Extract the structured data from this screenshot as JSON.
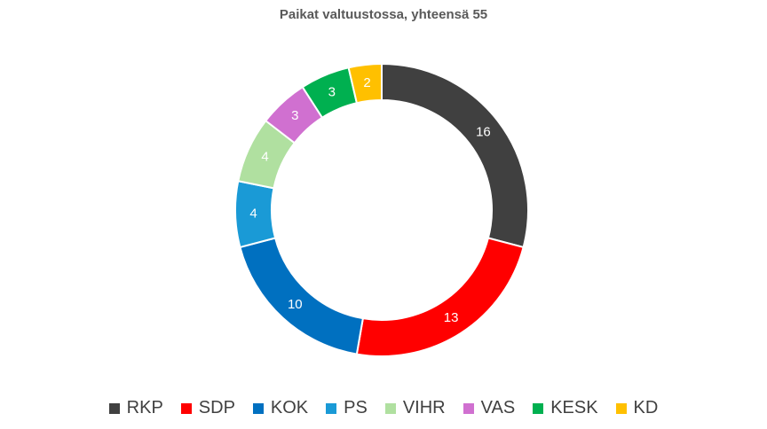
{
  "chart_data": {
    "type": "pie",
    "variant": "donut",
    "title": "Paikat valtuustossa, yhteensä 55",
    "categories": [
      "RKP",
      "SDP",
      "KOK",
      "PS",
      "VIHR",
      "VAS",
      "KESK",
      "KD"
    ],
    "values": [
      16,
      13,
      10,
      4,
      4,
      3,
      3,
      2
    ],
    "colors": [
      "#404040",
      "#ff0000",
      "#0070c0",
      "#1a9ad6",
      "#b0e0a0",
      "#d070d0",
      "#00b050",
      "#ffc000"
    ],
    "legend_position": "bottom",
    "data_labels": true
  }
}
